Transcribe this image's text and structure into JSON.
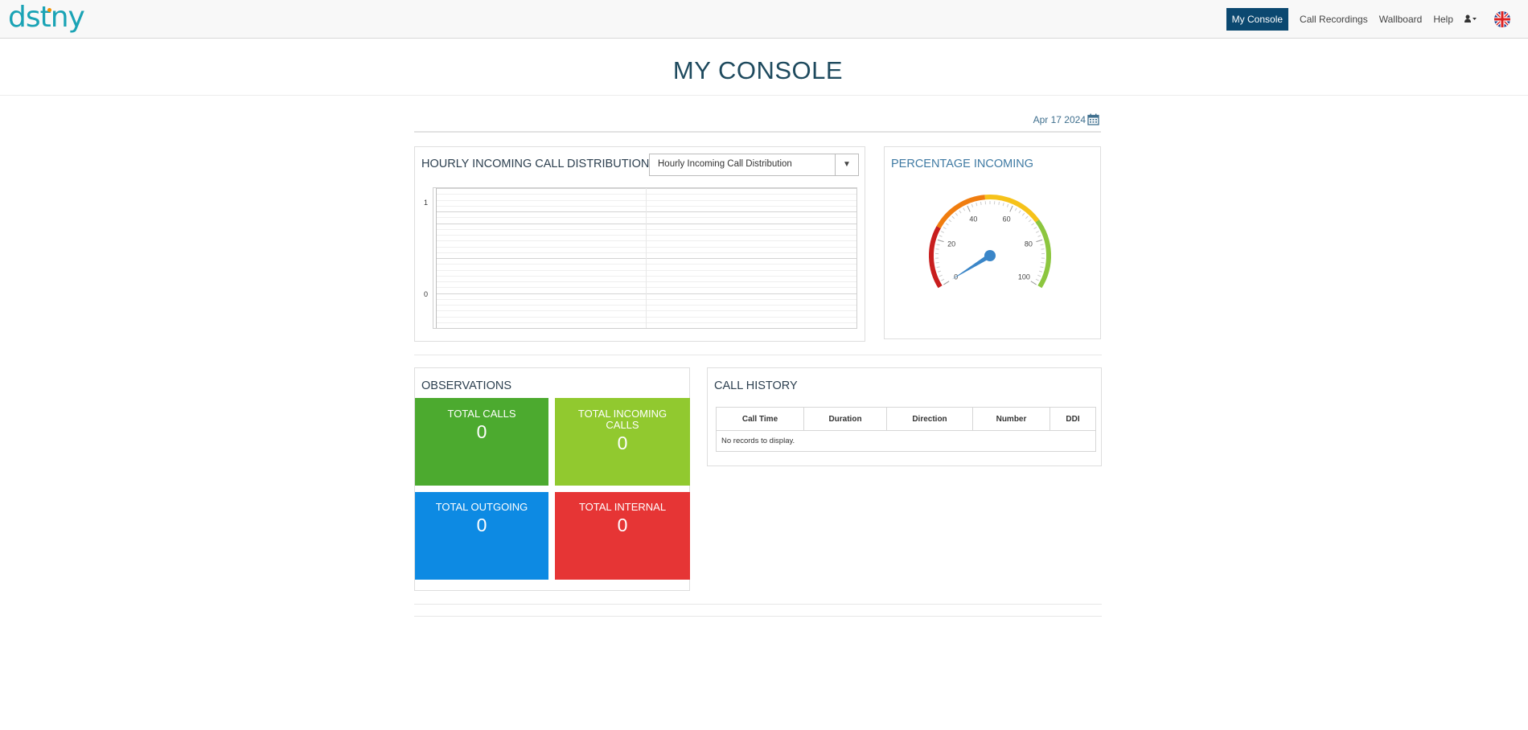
{
  "app": {
    "logo_text": "dstny"
  },
  "nav": {
    "items": [
      {
        "label": "My Console",
        "active": true
      },
      {
        "label": "Call Recordings",
        "active": false
      },
      {
        "label": "Wallboard",
        "active": false
      },
      {
        "label": "Help",
        "active": false
      }
    ],
    "user_icon": "user-dropdown-icon",
    "language_icon": "uk-flag-icon"
  },
  "page": {
    "title": "MY CONSOLE",
    "date": "Apr 17 2024",
    "date_icon": "calendar-icon"
  },
  "hourly": {
    "title": "HOURLY INCOMING CALL DISTRIBUTION",
    "select_value": "Hourly Incoming Call Distribution",
    "chart_data": {
      "type": "line",
      "title": "",
      "xlabel": "",
      "ylabel": "",
      "ylim": [
        0,
        1
      ],
      "yticks": [
        "1",
        "0"
      ],
      "series": []
    }
  },
  "gauge": {
    "title": "PERCENTAGE INCOMING",
    "ticks": [
      "0",
      "20",
      "40",
      "60",
      "80",
      "100"
    ],
    "value": 0,
    "band_colors": [
      "#c81e1e",
      "#f07d0f",
      "#f6c21a",
      "#8cc63f"
    ],
    "needle_color": "#3b86c8"
  },
  "observations": {
    "title": "OBSERVATIONS",
    "tiles": [
      {
        "label": "TOTAL CALLS",
        "value": "0",
        "color": "#4caa2f"
      },
      {
        "label": "TOTAL INCOMING CALLS",
        "value": "0",
        "color": "#91c92f"
      },
      {
        "label": "TOTAL OUTGOING",
        "value": "0",
        "color": "#0d8ae3"
      },
      {
        "label": "TOTAL INTERNAL",
        "value": "0",
        "color": "#e63535"
      }
    ]
  },
  "call_history": {
    "title": "CALL HISTORY",
    "columns": [
      "Call Time",
      "Duration",
      "Direction",
      "Number",
      "DDI"
    ],
    "empty_text": "No records to display."
  }
}
